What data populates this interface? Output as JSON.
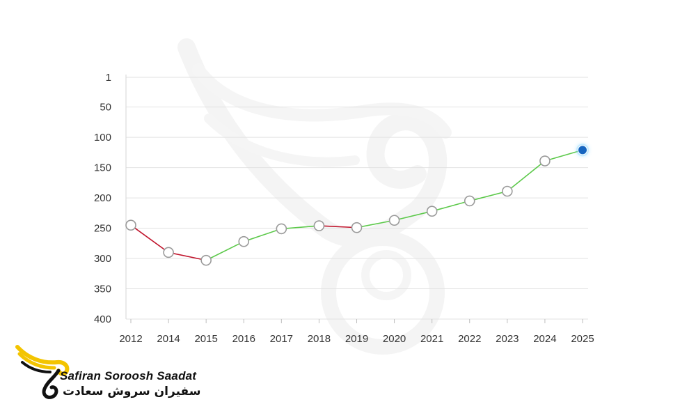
{
  "chart_data": {
    "type": "line",
    "title": "",
    "xlabel": "",
    "ylabel": "",
    "y_inverted": true,
    "ylim": [
      1,
      400
    ],
    "y_ticks": [
      1,
      50,
      100,
      150,
      200,
      250,
      300,
      350,
      400
    ],
    "x": [
      "2012",
      "2014",
      "2015",
      "2016",
      "2017",
      "2018",
      "2019",
      "2020",
      "2021",
      "2022",
      "2023",
      "2024",
      "2025"
    ],
    "values": [
      245,
      290,
      303,
      272,
      251,
      246,
      249,
      237,
      222,
      205,
      189,
      139,
      121
    ],
    "segment_colors": [
      "#c0132b",
      "#c0132b",
      "#5cc94a",
      "#5cc94a",
      "#5cc94a",
      "#c0132b",
      "#5cc94a",
      "#5cc94a",
      "#5cc94a",
      "#5cc94a",
      "#5cc94a",
      "#5cc94a"
    ],
    "highlight_point_color": "#1565c0",
    "grid": true
  },
  "logo": {
    "name_en": "Safiran Soroosh Saadat",
    "name_fa": "سفیران سروش سعادت",
    "accent_color": "#f3c400"
  }
}
